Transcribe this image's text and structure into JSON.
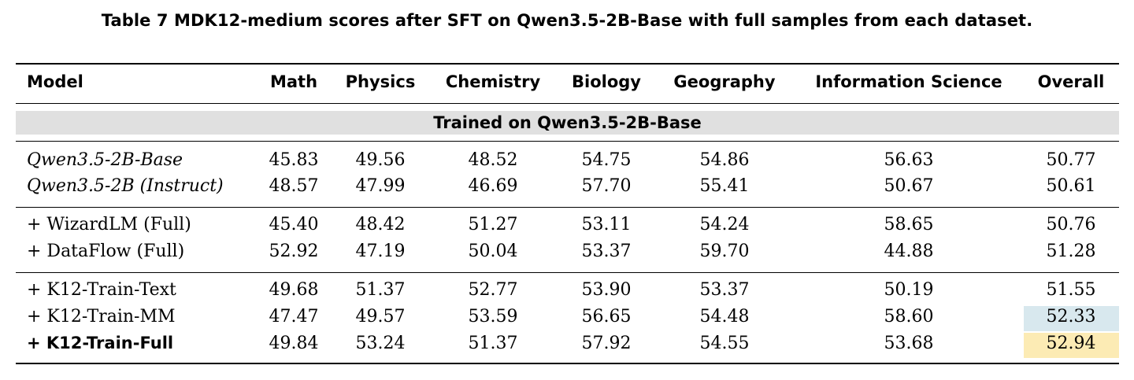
{
  "caption": "Table 7  MDK12-medium scores after SFT on Qwen3.5-2B-Base with full samples from each dataset.",
  "columns": [
    "Model",
    "Math",
    "Physics",
    "Chemistry",
    "Biology",
    "Geography",
    "Information Science",
    "Overall"
  ],
  "group_label": "Trained on Qwen3.5-2B-Base",
  "highlight_colors": {
    "second_best": "#d8e8ee",
    "best": "#fcebb4"
  },
  "rows": [
    {
      "model": "Qwen3.5-2B-Base",
      "style": "italic",
      "values": [
        "45.83",
        "49.56",
        "48.52",
        "54.75",
        "54.86",
        "56.63",
        "50.77"
      ]
    },
    {
      "model": "Qwen3.5-2B (Instruct)",
      "style": "italic",
      "values": [
        "48.57",
        "47.99",
        "46.69",
        "57.70",
        "55.41",
        "50.67",
        "50.61"
      ]
    },
    {
      "model": "+ WizardLM (Full)",
      "style": "normal",
      "values": [
        "45.40",
        "48.42",
        "51.27",
        "53.11",
        "54.24",
        "58.65",
        "50.76"
      ]
    },
    {
      "model": "+ DataFlow (Full)",
      "style": "normal",
      "values": [
        "52.92",
        "47.19",
        "50.04",
        "53.37",
        "59.70",
        "44.88",
        "51.28"
      ]
    },
    {
      "model": "+ K12-Train-Text",
      "style": "normal",
      "values": [
        "49.68",
        "51.37",
        "52.77",
        "53.90",
        "53.37",
        "50.19",
        "51.55"
      ]
    },
    {
      "model": "+ K12-Train-MM",
      "style": "normal",
      "values": [
        "47.47",
        "49.57",
        "53.59",
        "56.65",
        "54.48",
        "58.60",
        "52.33"
      ]
    },
    {
      "model": "+ K12-Train-Full",
      "style": "bold",
      "values": [
        "49.84",
        "53.24",
        "51.37",
        "57.92",
        "54.55",
        "53.68",
        "52.94"
      ]
    }
  ]
}
